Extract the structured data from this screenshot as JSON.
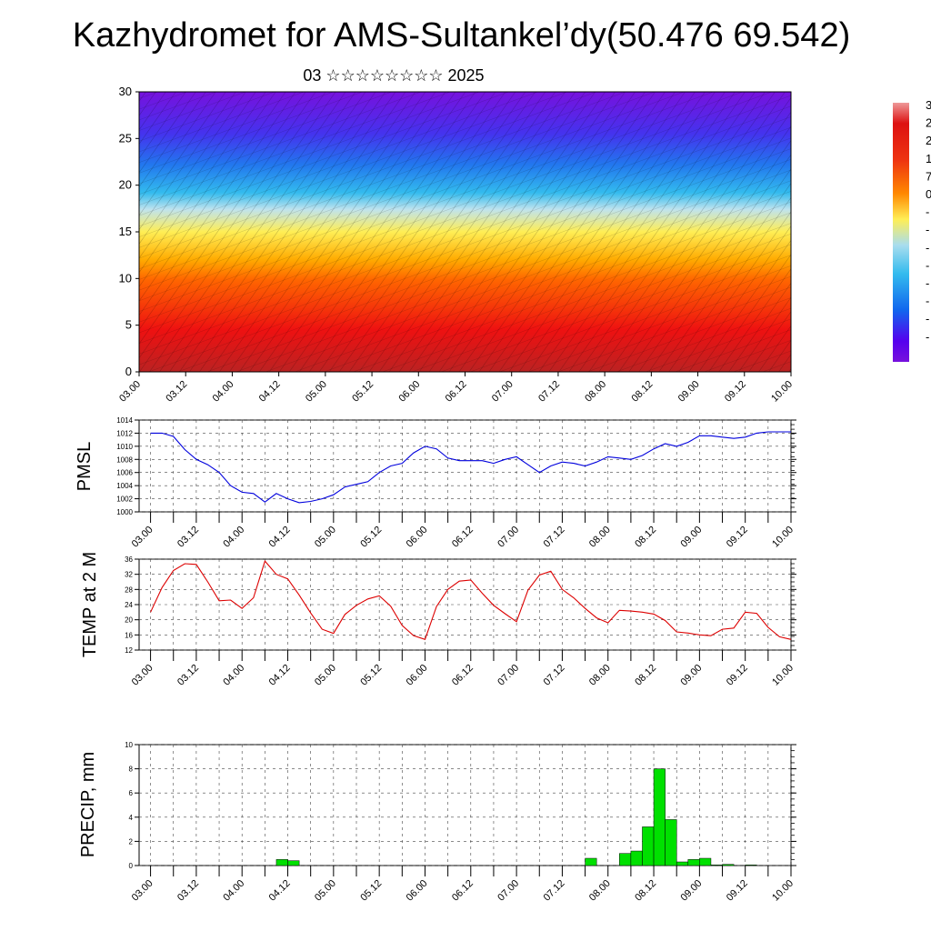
{
  "title": "Kazhydromet for AMS-Sultankel’dy(50.476 69.542)",
  "subtitle": "03 ☆☆☆☆☆☆☆☆ 2025",
  "time_ticks": [
    "03.00",
    "03.12",
    "04.00",
    "04.12",
    "05.00",
    "05.12",
    "06.00",
    "06.12",
    "07.00",
    "07.12",
    "08.00",
    "08.12",
    "09.00",
    "09.12",
    "10.00"
  ],
  "colors": {
    "pmsl_line": "#0000dd",
    "temp_line": "#dd0000",
    "precip_bar": "#00e000",
    "colorbar": [
      "#ee9999",
      "#dd1111",
      "#ee3311",
      "#ff8800",
      "#ffee55",
      "#a8ddee",
      "#33bbee",
      "#1166ee",
      "#5500ee",
      "#7711dd"
    ]
  },
  "chart_data": [
    {
      "type": "heatmap",
      "description_units": "altitude km (cross-section with wind barbs)",
      "ylim": [
        0,
        30
      ],
      "yticks": [
        0,
        5,
        10,
        15,
        20,
        25,
        30
      ],
      "x_tick_labels": [
        "03.00",
        "03.12",
        "04.00",
        "04.12",
        "05.00",
        "05.12",
        "06.00",
        "06.12",
        "07.00",
        "07.12",
        "08.00",
        "08.12",
        "09.00",
        "09.12",
        "10.00"
      ],
      "colorbar_labels_visible": [
        "3",
        "2",
        "2",
        "1",
        "7",
        "0",
        "-",
        "-",
        "-",
        "-",
        "-",
        "-",
        "-",
        "-"
      ]
    },
    {
      "type": "line",
      "ylabel": "PMSL",
      "ylim": [
        1000,
        1014
      ],
      "yticks": [
        1000,
        1002,
        1004,
        1006,
        1008,
        1010,
        1012,
        1014
      ],
      "x": [
        0,
        3,
        6,
        9,
        12,
        15,
        18,
        21,
        24,
        27,
        30,
        33,
        36,
        39,
        42,
        45,
        48,
        51,
        54,
        57,
        60,
        63,
        66,
        69,
        72,
        75,
        78,
        81,
        84,
        87,
        90,
        93,
        96,
        99,
        102,
        105,
        108,
        111,
        114,
        117,
        120,
        123,
        126,
        129,
        132,
        135,
        138,
        141,
        144,
        147,
        150,
        153,
        156,
        159,
        162,
        165,
        168
      ],
      "values": [
        1012.0,
        1012.0,
        1011.5,
        1009.5,
        1008.0,
        1007.2,
        1006.0,
        1004.0,
        1003.0,
        1002.8,
        1001.5,
        1002.8,
        1002.0,
        1001.4,
        1001.6,
        1002.0,
        1002.6,
        1003.8,
        1004.2,
        1004.6,
        1006.0,
        1007.0,
        1007.4,
        1009.0,
        1010.0,
        1009.6,
        1008.2,
        1007.8,
        1007.8,
        1007.8,
        1007.4,
        1008.0,
        1008.4,
        1007.2,
        1006.0,
        1007.0,
        1007.6,
        1007.4,
        1007.0,
        1007.6,
        1008.4,
        1008.2,
        1008.0,
        1008.6,
        1009.6,
        1010.4,
        1010.0,
        1010.6,
        1011.6,
        1011.6,
        1011.4,
        1011.2,
        1011.4,
        1012.0,
        1012.2,
        1012.2,
        1012.2
      ]
    },
    {
      "type": "line",
      "ylabel": "TEMP at 2 M",
      "ylim": [
        12,
        36
      ],
      "yticks": [
        12,
        16,
        20,
        24,
        28,
        32,
        36
      ],
      "x": [
        0,
        3,
        6,
        9,
        12,
        15,
        18,
        21,
        24,
        27,
        30,
        33,
        36,
        39,
        42,
        45,
        48,
        51,
        54,
        57,
        60,
        63,
        66,
        69,
        72,
        75,
        78,
        81,
        84,
        87,
        90,
        93,
        96,
        99,
        102,
        105,
        108,
        111,
        114,
        117,
        120,
        123,
        126,
        129,
        132,
        135,
        138,
        141,
        144,
        147,
        150,
        153,
        156,
        159,
        162,
        165,
        168
      ],
      "values": [
        22.0,
        28.5,
        33.0,
        34.8,
        34.6,
        30.0,
        25.0,
        25.2,
        23.0,
        25.8,
        35.5,
        32.0,
        30.8,
        26.5,
        21.8,
        17.5,
        16.4,
        21.4,
        23.8,
        25.5,
        26.3,
        23.6,
        18.5,
        15.8,
        14.8,
        23.5,
        28.0,
        30.2,
        30.5,
        27.0,
        23.8,
        21.6,
        19.5,
        27.8,
        31.8,
        32.8,
        28.0,
        25.8,
        23.0,
        20.5,
        19.2,
        22.5,
        22.3,
        22.0,
        21.5,
        19.8,
        16.8,
        16.5,
        16.0,
        15.8,
        17.5,
        17.8,
        22.0,
        21.7,
        18.0,
        15.5,
        14.8
      ]
    },
    {
      "type": "bar",
      "ylabel": "PRECIP, mm",
      "ylim": [
        0,
        10
      ],
      "yticks": [
        0,
        2,
        4,
        6,
        8,
        10
      ],
      "bin_hours": 3,
      "bin_start_hours": [
        33,
        36,
        114,
        123,
        126,
        129,
        132,
        135,
        138,
        141,
        144,
        147,
        150,
        156
      ],
      "values": [
        0.5,
        0.4,
        0.6,
        1.0,
        1.2,
        3.2,
        8.0,
        3.8,
        0.3,
        0.5,
        0.6,
        0.05,
        0.1,
        0.05
      ]
    }
  ]
}
